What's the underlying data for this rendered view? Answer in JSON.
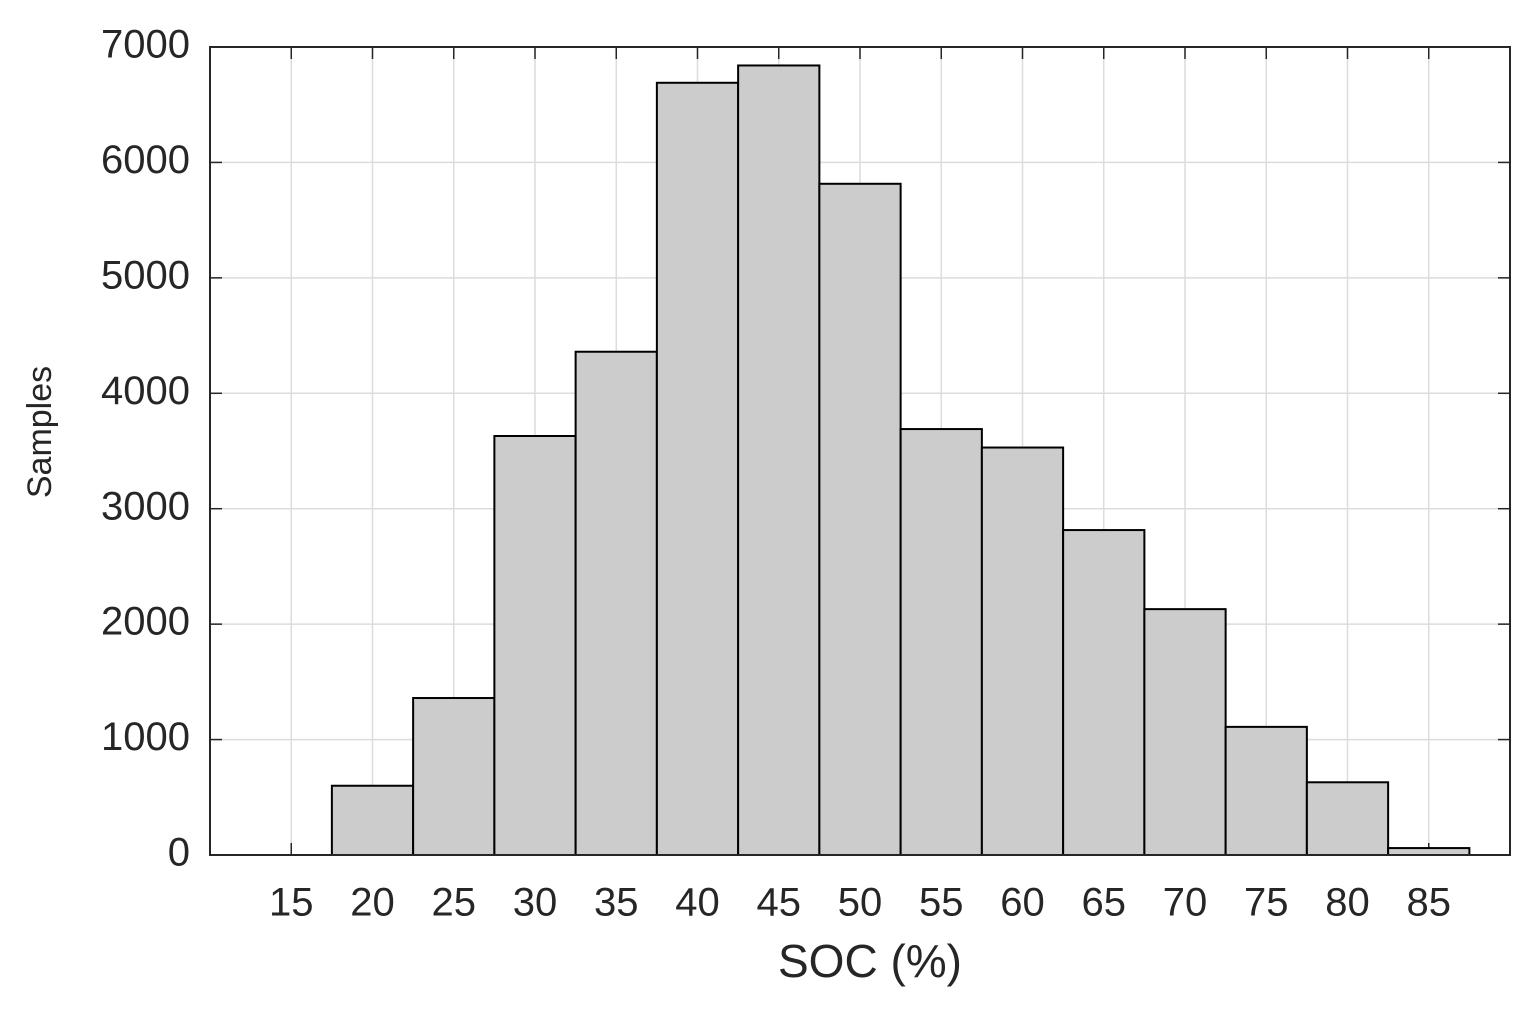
{
  "chart_data": {
    "type": "histogram",
    "x_label": "SOC (%)",
    "y_label": "Samples",
    "bins": [
      17.5,
      22.5,
      27.5,
      32.5,
      37.5,
      42.5,
      47.5,
      52.5,
      57.5,
      62.5,
      67.5,
      72.5,
      77.5,
      82.5,
      87.5
    ],
    "values": [
      600,
      1360,
      3630,
      4360,
      6690,
      6840,
      5815,
      3690,
      3530,
      2815,
      2130,
      1110,
      630,
      60
    ],
    "color": "#cccccc",
    "edge_color": "#000000",
    "xlim": [
      10,
      90
    ],
    "xticks": [
      15,
      20,
      25,
      30,
      35,
      40,
      45,
      50,
      55,
      60,
      65,
      70,
      75,
      80,
      85
    ],
    "ylim": [
      0,
      7000
    ],
    "yticks": [
      0,
      1000,
      2000,
      3000,
      4000,
      5000,
      6000,
      7000
    ],
    "grid": true
  }
}
